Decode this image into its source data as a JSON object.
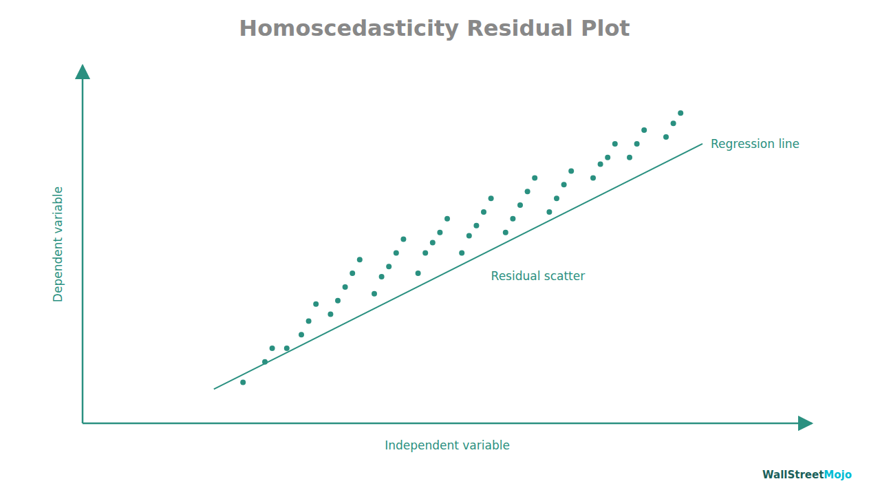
{
  "chart_data": {
    "type": "scatter",
    "title": "Homoscedasticity Residual Plot",
    "xlabel": "Independent variable",
    "ylabel": "Dependent variable",
    "xlim": [
      0,
      1.0
    ],
    "ylim": [
      0,
      1.05
    ],
    "grid": false,
    "tick_labels": false,
    "series": [
      {
        "type": "scatter",
        "color": "#2a9080",
        "marker": "circle",
        "x": [
          0.22,
          0.25,
          0.26,
          0.28,
          0.3,
          0.31,
          0.32,
          0.34,
          0.35,
          0.36,
          0.37,
          0.38,
          0.4,
          0.41,
          0.42,
          0.43,
          0.44,
          0.46,
          0.47,
          0.48,
          0.49,
          0.5,
          0.52,
          0.53,
          0.54,
          0.55,
          0.56,
          0.58,
          0.59,
          0.6,
          0.61,
          0.62,
          0.64,
          0.65,
          0.66,
          0.67,
          0.7,
          0.71,
          0.72,
          0.73,
          0.75,
          0.76,
          0.77,
          0.8,
          0.81,
          0.82
        ],
        "values": [
          0.12,
          0.18,
          0.22,
          0.22,
          0.26,
          0.3,
          0.35,
          0.32,
          0.36,
          0.4,
          0.44,
          0.48,
          0.38,
          0.43,
          0.46,
          0.5,
          0.54,
          0.44,
          0.5,
          0.53,
          0.56,
          0.6,
          0.5,
          0.55,
          0.58,
          0.62,
          0.66,
          0.56,
          0.6,
          0.64,
          0.68,
          0.72,
          0.62,
          0.66,
          0.7,
          0.74,
          0.72,
          0.76,
          0.78,
          0.82,
          0.78,
          0.82,
          0.86,
          0.84,
          0.88,
          0.91
        ]
      },
      {
        "type": "line",
        "color": "#2a9080",
        "line_style": "solid",
        "x": [
          0.18,
          0.85
        ],
        "values": [
          0.1,
          0.82
        ]
      }
    ],
    "annotations": [
      {
        "text": "Regression line",
        "color": "#2a9080"
      },
      {
        "text": "Residual scatter",
        "color": "#2a9080"
      },
      {
        "text": "WallStreet",
        "color": "#1a5f5a"
      },
      {
        "text": "Mojo",
        "color": "#00bcd4"
      }
    ],
    "color": "#2a9080"
  }
}
